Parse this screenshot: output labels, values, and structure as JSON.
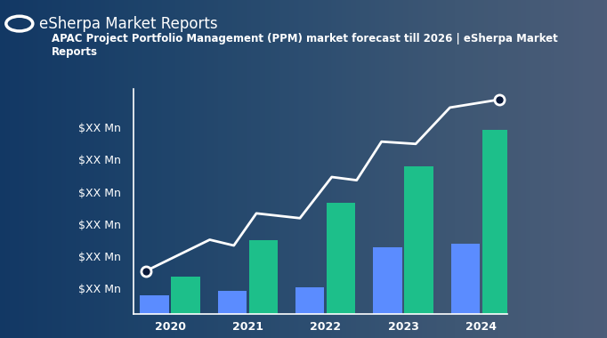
{
  "chart_data": {
    "type": "bar",
    "title": "APAC Project Portfolio Management (PPM) market forecast till 2026 | eSherpa Market Reports",
    "annotations": [
      "eSherpa Market Reports"
    ],
    "categories": [
      "2020",
      "2021",
      "2022",
      "2023",
      "2024"
    ],
    "series": [
      {
        "type": "bar",
        "color": "#5b8cff",
        "values": [
          0.79,
          0.92,
          1.03,
          2.28,
          2.38
        ]
      },
      {
        "type": "bar",
        "color": "#1dbf8a",
        "values": [
          1.36,
          2.51,
          3.67,
          4.79,
          5.92
        ]
      },
      {
        "type": "line",
        "color": "#ffffff",
        "marker": "o",
        "line_style": "solid",
        "x": [
          -0.31,
          0.51,
          0.82,
          1.11,
          1.67,
          2.08,
          2.4,
          2.72,
          3.16,
          3.6,
          4.24
        ],
        "values": [
          1.54,
          2.51,
          2.33,
          3.33,
          3.18,
          4.46,
          4.36,
          5.56,
          5.49,
          6.62,
          6.87
        ]
      }
    ],
    "xlim": [
      -0.47,
      4.34
    ],
    "ylim": [
      0.2,
      7.2
    ],
    "yticks": [
      {
        "value": 1,
        "label": "$XX Mn"
      },
      {
        "value": 2,
        "label": "$XX Mn"
      },
      {
        "value": 3,
        "label": "$XX Mn"
      },
      {
        "value": 4,
        "label": "$XX Mn"
      },
      {
        "value": 5,
        "label": "$XX Mn"
      },
      {
        "value": 6,
        "label": "$XX Mn"
      }
    ],
    "grid": false
  }
}
